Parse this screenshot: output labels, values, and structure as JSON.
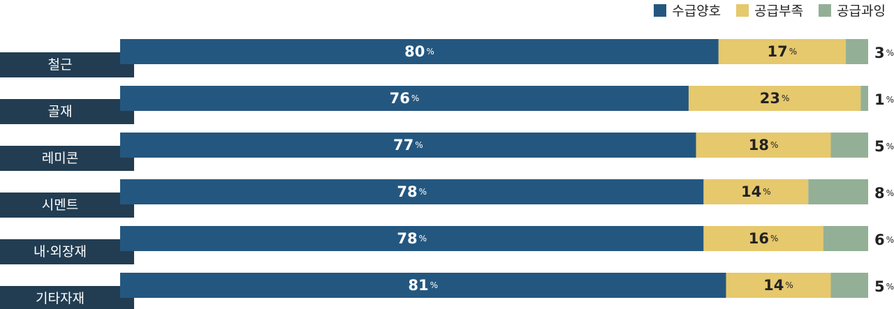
{
  "chart_data": {
    "type": "bar",
    "orientation": "horizontal",
    "stacked": true,
    "value_unit": "%",
    "xlim": [
      0,
      100
    ],
    "legend_position": "top-right",
    "grid": false,
    "categories": [
      "철근",
      "골재",
      "레미콘",
      "시멘트",
      "내·외장재",
      "기타자재"
    ],
    "series": [
      {
        "name": "수급양호",
        "color": "#24577f",
        "label_color": "#ffffff",
        "values": [
          80,
          76,
          77,
          78,
          78,
          81
        ]
      },
      {
        "name": "공급부족",
        "color": "#e6c86d",
        "label_color": "#222222",
        "values": [
          17,
          23,
          18,
          14,
          16,
          14
        ]
      },
      {
        "name": "공급과잉",
        "color": "#93b096",
        "label_color": "#222222",
        "values": [
          3,
          1,
          5,
          8,
          6,
          5
        ]
      }
    ]
  },
  "colors": {
    "category_tag": "#223d52",
    "category_text": "#ffffff"
  }
}
